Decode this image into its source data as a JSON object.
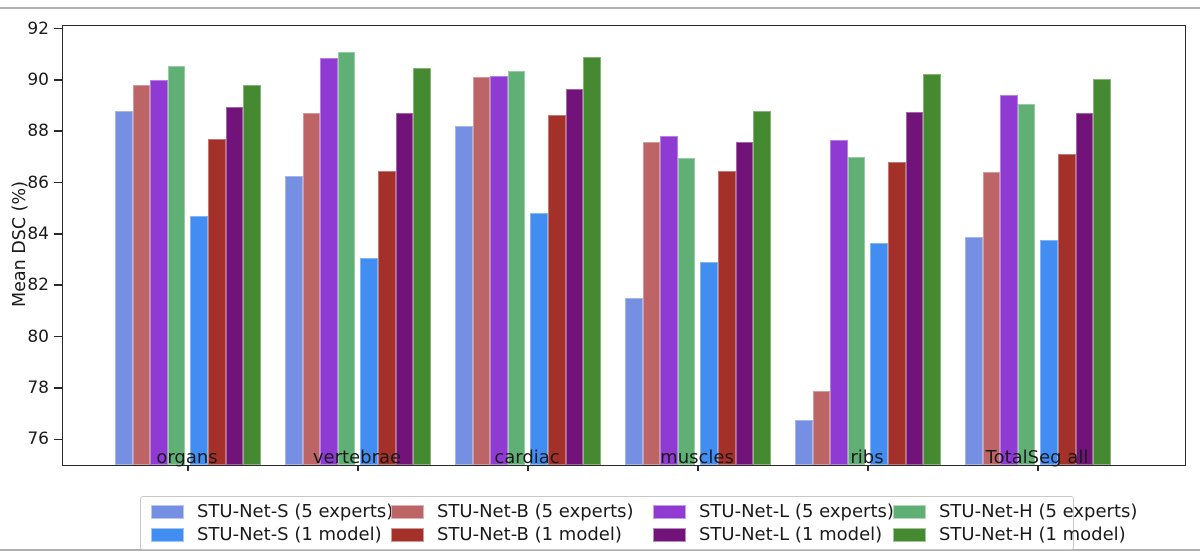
{
  "chart_data": {
    "type": "bar",
    "title": "",
    "xlabel": "",
    "ylabel": "Mean DSC (%)",
    "categories": [
      "organs",
      "vertebrae",
      "cardiac",
      "muscles",
      "ribs",
      "TotalSeg all"
    ],
    "ylim": [
      75,
      92.1
    ],
    "yticks": [
      76,
      78,
      80,
      82,
      84,
      86,
      88,
      90,
      92
    ],
    "grid": false,
    "legend_position": "bottom center, framed box, 4 columns x 2 rows",
    "group_layout": "eight bars per category: four '5 experts' bars, small gap, four '1 model' bars",
    "series": [
      {
        "name": "STU-Net-S (5 experts)",
        "color": "#7590E2",
        "values": [
          88.8,
          86.25,
          88.2,
          81.5,
          76.75,
          83.9
        ]
      },
      {
        "name": "STU-Net-B (5 experts)",
        "color": "#BD6566",
        "values": [
          89.8,
          88.7,
          90.1,
          87.6,
          77.9,
          86.4
        ]
      },
      {
        "name": "STU-Net-L (5 experts)",
        "color": "#8F3BD3",
        "values": [
          90.0,
          90.85,
          90.15,
          87.8,
          87.65,
          89.4
        ]
      },
      {
        "name": "STU-Net-H (5 experts)",
        "color": "#60B075",
        "values": [
          90.55,
          91.1,
          90.35,
          86.95,
          87.0,
          89.05
        ]
      },
      {
        "name": "STU-Net-S (1 model)",
        "color": "#418DF2",
        "values": [
          84.7,
          83.05,
          84.8,
          82.9,
          83.65,
          83.75
        ]
      },
      {
        "name": "STU-Net-B (1 model)",
        "color": "#A43129",
        "values": [
          87.7,
          86.45,
          88.65,
          86.45,
          86.8,
          87.1
        ]
      },
      {
        "name": "STU-Net-L (1 model)",
        "color": "#711378",
        "values": [
          88.95,
          88.7,
          89.65,
          87.6,
          88.75,
          88.7
        ]
      },
      {
        "name": "STU-Net-H (1 model)",
        "color": "#458A31",
        "values": [
          89.8,
          90.45,
          90.9,
          88.8,
          90.25,
          90.05
        ]
      }
    ]
  }
}
